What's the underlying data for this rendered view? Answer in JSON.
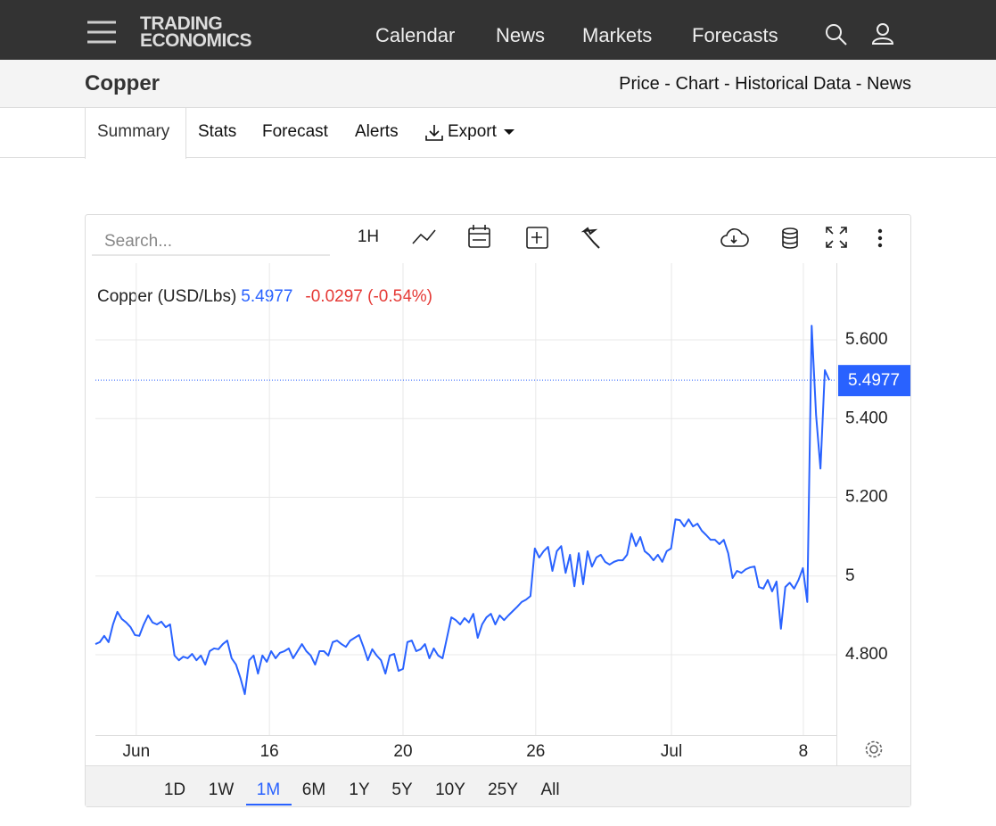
{
  "header": {
    "logo": [
      "TRADING",
      "ECONOMICS"
    ],
    "nav": [
      "Calendar",
      "News",
      "Markets",
      "Forecasts"
    ]
  },
  "page": {
    "title": "Copper",
    "links": "Price - Chart - Historical Data - News"
  },
  "tabs": [
    "Summary",
    "Stats",
    "Forecast",
    "Alerts",
    "Export"
  ],
  "toolbar": {
    "search_placeholder": "Search...",
    "interval": "1H"
  },
  "ranges": [
    "1D",
    "1W",
    "1M",
    "6M",
    "1Y",
    "5Y",
    "10Y",
    "25Y",
    "All"
  ],
  "chart_data": {
    "type": "line",
    "series": [
      {
        "name": "Copper (USD/Lbs)",
        "color": "#2962ff",
        "values": [
          4.827,
          4.832,
          4.848,
          4.832,
          4.877,
          4.909,
          4.891,
          4.882,
          4.87,
          4.85,
          4.848,
          4.877,
          4.9,
          4.882,
          4.877,
          4.884,
          4.87,
          4.877,
          4.798,
          4.786,
          4.795,
          4.791,
          4.802,
          4.786,
          4.798,
          4.775,
          4.809,
          4.816,
          4.814,
          4.827,
          4.836,
          4.791,
          4.775,
          4.741,
          4.7,
          4.786,
          4.798,
          4.752,
          4.798,
          4.782,
          4.809,
          4.791,
          4.805,
          4.809,
          4.816,
          4.791,
          4.809,
          4.827,
          4.809,
          4.798,
          4.775,
          4.809,
          4.809,
          4.798,
          4.832,
          4.836,
          4.827,
          4.82,
          4.836,
          4.843,
          4.85,
          4.82,
          4.786,
          4.814,
          4.798,
          4.786,
          4.752,
          4.798,
          4.802,
          4.759,
          4.764,
          4.832,
          4.836,
          4.809,
          4.814,
          4.827,
          4.791,
          4.816,
          4.798,
          4.791,
          4.843,
          4.895,
          4.888,
          4.877,
          4.893,
          4.882,
          4.904,
          4.843,
          4.877,
          4.895,
          4.904,
          4.877,
          4.9,
          4.888,
          4.9,
          4.911,
          4.922,
          4.934,
          4.94,
          4.949,
          5.07,
          5.047,
          5.063,
          5.074,
          5.013,
          5.063,
          5.076,
          5.008,
          5.054,
          4.974,
          5.058,
          4.979,
          5.063,
          5.024,
          5.047,
          5.054,
          5.036,
          5.029,
          5.036,
          5.04,
          5.04,
          5.054,
          5.108,
          5.076,
          5.099,
          5.063,
          5.054,
          5.04,
          5.054,
          5.036,
          5.063,
          5.07,
          5.144,
          5.142,
          5.126,
          5.144,
          5.126,
          5.133,
          5.115,
          5.104,
          5.092,
          5.092,
          5.081,
          5.092,
          5.058,
          4.995,
          5.013,
          5.008,
          5.017,
          5.022,
          5.024,
          4.972,
          4.968,
          4.99,
          4.961,
          4.986,
          4.866,
          4.972,
          4.983,
          4.968,
          4.99,
          5.02,
          4.934,
          5.636,
          5.409,
          5.273,
          5.523,
          5.4977
        ]
      }
    ],
    "last_value": 5.4977,
    "change": "-0.0297 (-0.54%)",
    "xlim": [
      0,
      167
    ],
    "xticks": [
      {
        "value": 9.3,
        "label": "Jun"
      },
      {
        "value": 39.6,
        "label": "16"
      },
      {
        "value": 70,
        "label": "20"
      },
      {
        "value": 100.2,
        "label": "26"
      },
      {
        "value": 131.1,
        "label": "Jul"
      },
      {
        "value": 161.1,
        "label": "8"
      }
    ],
    "ylim": [
      4.596,
      5.795
    ],
    "yticks": [
      {
        "value": 4.8,
        "label": "4.800"
      },
      5,
      {
        "value": 5.2,
        "label": "5.200"
      },
      {
        "value": 5.4,
        "label": "5.400"
      },
      {
        "value": 5.6,
        "label": "5.600"
      }
    ],
    "grid": true
  }
}
